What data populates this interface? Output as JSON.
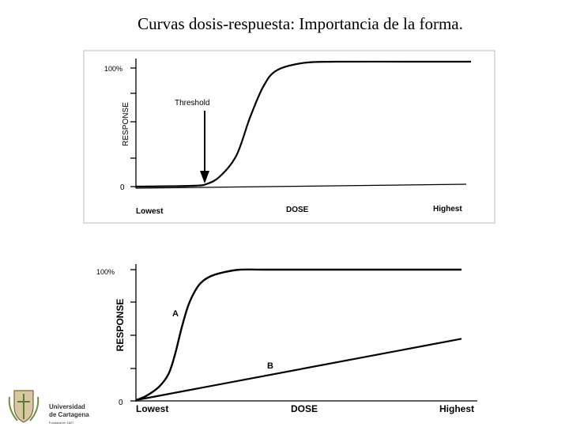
{
  "title": "Curvas dosis-respuesta:  Importancia de la forma.",
  "chart_data": [
    {
      "type": "line",
      "ylabel": "RESPONSE",
      "xlabel": "DOSE",
      "x_tick_labels": [
        "Lowest",
        "Highest"
      ],
      "y_tick_labels": [
        "0",
        "100%"
      ],
      "annotation": "Threshold",
      "ylim": [
        0,
        100
      ],
      "series": [
        {
          "x": [
            0,
            10,
            18,
            21,
            25,
            30,
            34,
            38,
            42,
            50,
            60,
            80,
            100
          ],
          "y": [
            0,
            0.3,
            0.8,
            2,
            8,
            25,
            55,
            80,
            93,
            99,
            100,
            100,
            100
          ]
        }
      ]
    },
    {
      "type": "line",
      "ylabel": "RESPONSE",
      "xlabel": "DOSE",
      "x_tick_labels": [
        "Lowest",
        "Highest"
      ],
      "y_tick_labels": [
        "0",
        "100%"
      ],
      "ylim": [
        0,
        100
      ],
      "series": [
        {
          "name": "A",
          "x": [
            0,
            3,
            7,
            10,
            12,
            14,
            16,
            18,
            20,
            23,
            27,
            32,
            40,
            60,
            80,
            100
          ],
          "y": [
            0,
            3,
            10,
            20,
            35,
            55,
            72,
            83,
            90,
            95,
            98,
            100,
            100,
            100,
            100,
            100
          ]
        },
        {
          "name": "B",
          "x": [
            0,
            100
          ],
          "y": [
            0,
            47
          ]
        }
      ]
    }
  ],
  "logo": {
    "name_line1": "Universidad",
    "name_line2": "de Cartagena",
    "motto": "Fundada en 1827"
  }
}
